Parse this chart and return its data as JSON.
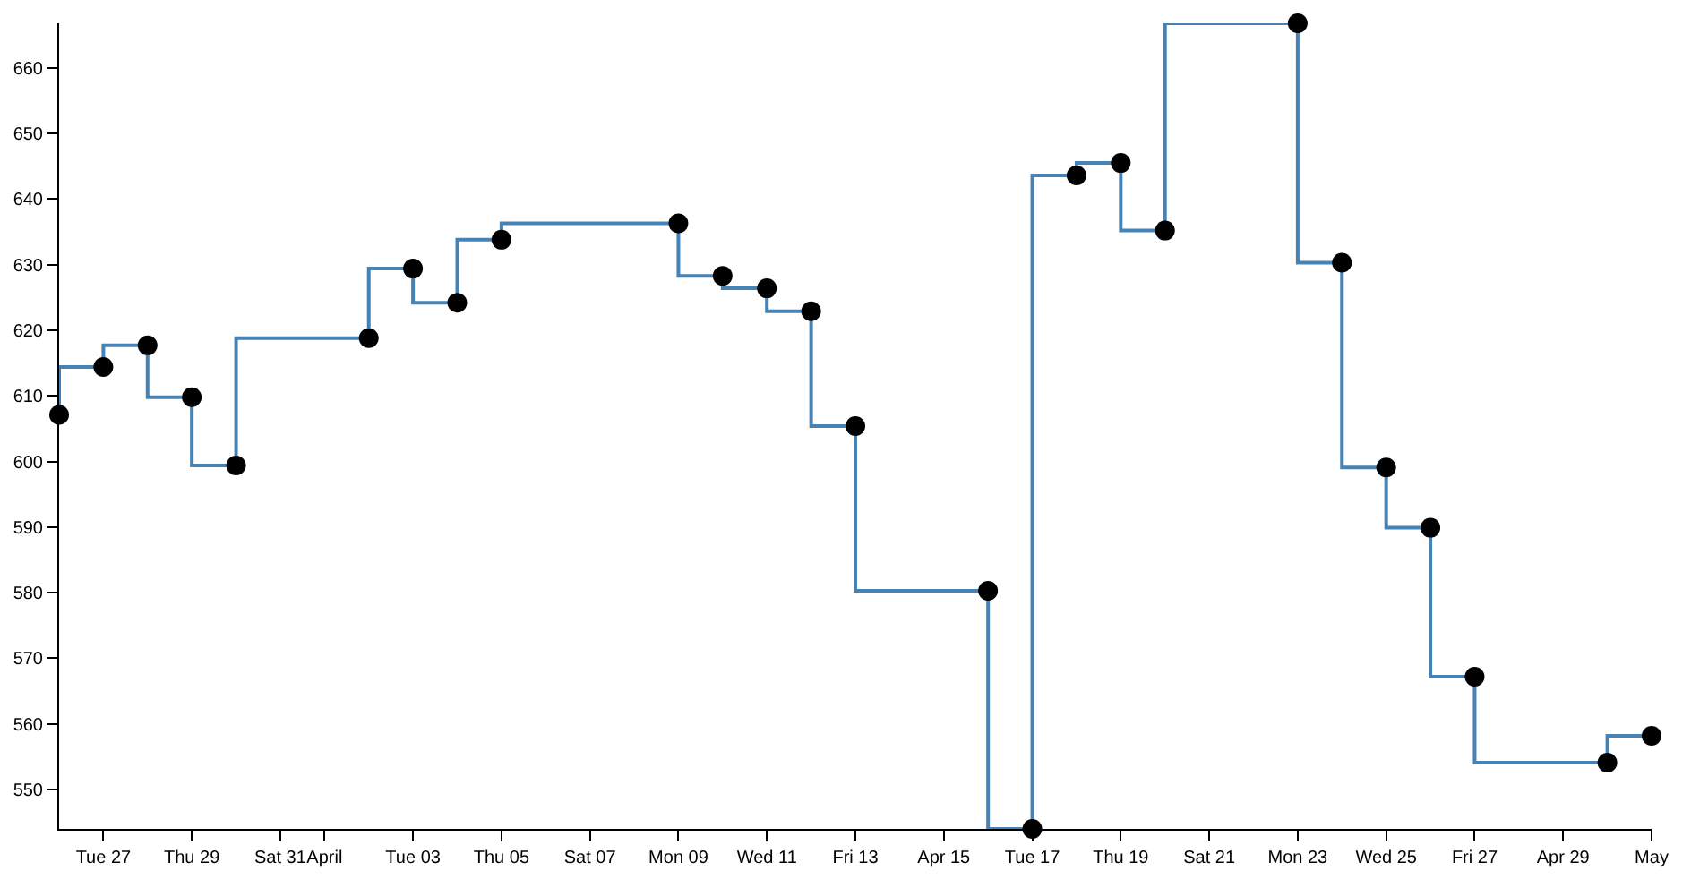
{
  "chart_data": {
    "type": "step",
    "x": [
      "--03-26",
      "--03-27",
      "--03-28",
      "--03-29",
      "--03-30",
      "--04-02",
      "--04-03",
      "--04-04",
      "--04-05",
      "--04-09",
      "--04-10",
      "--04-11",
      "--04-12",
      "--04-13",
      "--04-16",
      "--04-17",
      "--04-18",
      "--04-19",
      "--04-20",
      "--04-23",
      "--04-24",
      "--04-25",
      "--04-26",
      "--04-27",
      "--04-30",
      "--05-01"
    ],
    "series": [
      {
        "color": "#4682b4",
        "values": [
          607.1,
          614.4,
          617.7,
          609.8,
          599.4,
          618.8,
          629.4,
          624.2,
          633.8,
          636.3,
          628.3,
          626.4,
          622.9,
          605.4,
          580.3,
          544.0,
          643.6,
          645.5,
          635.2,
          666.8,
          630.3,
          599.1,
          589.9,
          567.2,
          554.1,
          558.2
        ]
      }
    ],
    "xlim": [
      "--03-26",
      "--05-01"
    ],
    "xticks": [
      {
        "value": "--03-27",
        "label": "Tue 27"
      },
      {
        "value": "--03-29",
        "label": "Thu 29"
      },
      {
        "value": "--03-31",
        "label": "Sat 31"
      },
      {
        "value": "--04-01",
        "label": "April"
      },
      {
        "value": "--04-03",
        "label": "Tue 03"
      },
      {
        "value": "--04-05",
        "label": "Thu 05"
      },
      {
        "value": "--04-07",
        "label": "Sat 07"
      },
      {
        "value": "--04-09",
        "label": "Mon 09"
      },
      {
        "value": "--04-11",
        "label": "Wed 11"
      },
      {
        "value": "--04-13",
        "label": "Fri 13"
      },
      {
        "value": "--04-15",
        "label": "Apr 15"
      },
      {
        "value": "--04-17",
        "label": "Tue 17"
      },
      {
        "value": "--04-19",
        "label": "Thu 19"
      },
      {
        "value": "--04-21",
        "label": "Sat 21"
      },
      {
        "value": "--04-23",
        "label": "Mon 23"
      },
      {
        "value": "--04-25",
        "label": "Wed 25"
      },
      {
        "value": "--04-27",
        "label": "Fri 27"
      },
      {
        "value": "--04-29",
        "label": "Apr 29"
      },
      {
        "value": "--05-01",
        "label": "May"
      }
    ],
    "ylim": [
      544.0,
      666.8
    ],
    "yticks": [
      550,
      560,
      570,
      580,
      590,
      600,
      610,
      620,
      630,
      640,
      650,
      660
    ],
    "marker": "circle",
    "line_style": "solid"
  }
}
